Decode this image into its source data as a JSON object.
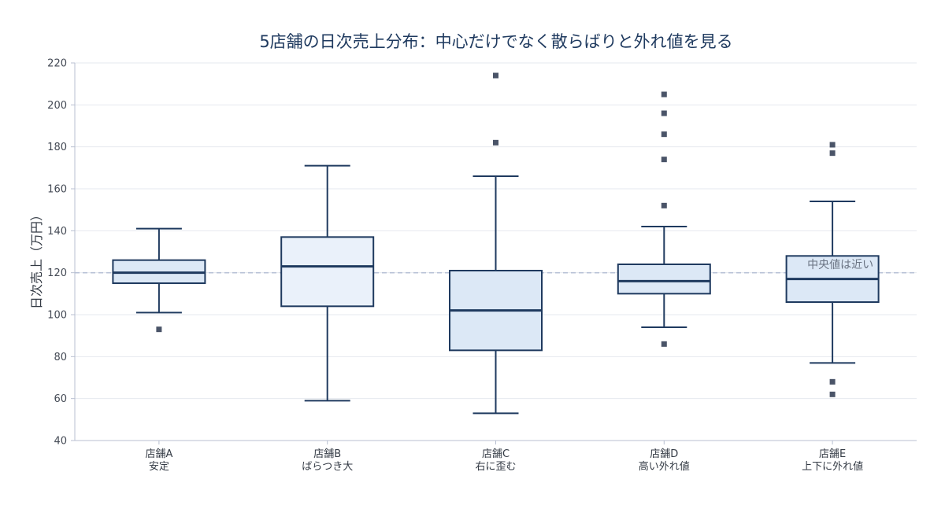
{
  "chart_data": {
    "type": "box",
    "title": "5店舗の日次売上分布：中心だけでなく散らばりと外れ値を見る",
    "ylabel": "日次売上（万円）",
    "xlabel": "",
    "ylim": [
      40,
      220
    ],
    "yticks": [
      40,
      60,
      80,
      100,
      120,
      140,
      160,
      180,
      200,
      220
    ],
    "grid": true,
    "reference_line": {
      "value": 120,
      "style": "dashed",
      "color": "#b8c2d6"
    },
    "annotation": {
      "text": "中央値は近い",
      "category_index": 4,
      "y": 124
    },
    "categories": [
      {
        "name": "店舗A",
        "note": "安定"
      },
      {
        "name": "店舗B",
        "note": "ばらつき大"
      },
      {
        "name": "店舗C",
        "note": "右に歪む"
      },
      {
        "name": "店舗D",
        "note": "高い外れ値"
      },
      {
        "name": "店舗E",
        "note": "上下に外れ値"
      }
    ],
    "boxes": [
      {
        "whisker_low": 101,
        "q1": 115,
        "median": 120,
        "q3": 126,
        "whisker_high": 141,
        "outliers": [
          93
        ],
        "fill": "#dce8f6"
      },
      {
        "whisker_low": 59,
        "q1": 104,
        "median": 123,
        "q3": 137,
        "whisker_high": 171,
        "outliers": [],
        "fill": "#eaf1fa"
      },
      {
        "whisker_low": 53,
        "q1": 83,
        "median": 102,
        "q3": 121,
        "whisker_high": 166,
        "outliers": [
          182,
          214
        ],
        "fill": "#dce8f6"
      },
      {
        "whisker_low": 94,
        "q1": 110,
        "median": 116,
        "q3": 124,
        "whisker_high": 142,
        "outliers": [
          86,
          152,
          174,
          186,
          196,
          205
        ],
        "fill": "#dce8f6"
      },
      {
        "whisker_low": 77,
        "q1": 106,
        "median": 117,
        "q3": 128,
        "whisker_high": 154,
        "outliers": [
          62,
          68,
          177,
          181
        ],
        "fill": "#dce8f6"
      }
    ],
    "colors": {
      "stroke": "#1f3a5f",
      "outlier": "#4a5468",
      "grid": "#e6e9ef",
      "axis": "#b8bfd0"
    }
  }
}
